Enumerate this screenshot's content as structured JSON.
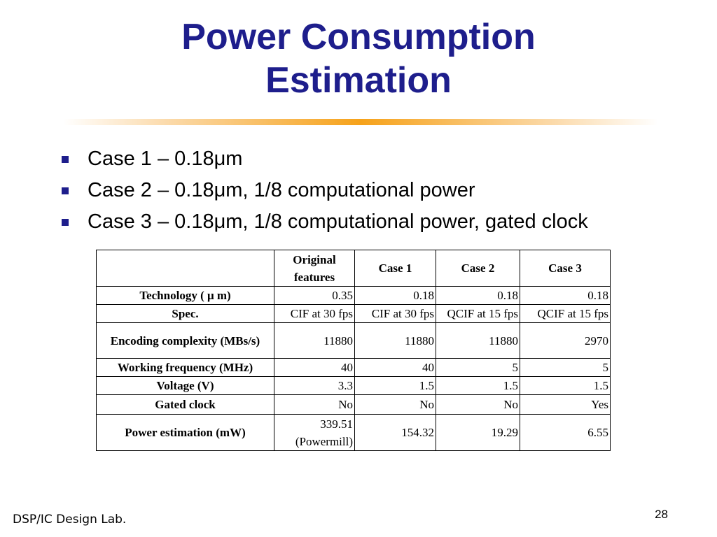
{
  "slide": {
    "title_line1": "Power Consumption",
    "title_line2": "Estimation",
    "bullets": [
      "Case 1 – 0.18μm",
      "Case 2 – 0.18μm, 1/8 computational power",
      "Case 3 – 0.18μm, 1/8 computational power, gated clock"
    ],
    "page_number": "28",
    "footer": "DSP/IC Design Lab."
  },
  "table": {
    "columns": [
      "",
      "Original features",
      "Case 1",
      "Case 2",
      "Case 3"
    ],
    "col0_line1": "Original",
    "col0_line2": "features",
    "rows": [
      {
        "label": "Technology ( μ m)",
        "values": [
          "0.35",
          "0.18",
          "0.18",
          "0.18"
        ]
      },
      {
        "label": "Spec.",
        "values": [
          "CIF at 30 fps",
          "CIF at 30 fps",
          "QCIF at 15 fps",
          "QCIF at 15 fps"
        ]
      },
      {
        "label": "Encoding complexity (MBs/s)",
        "values": [
          "11880",
          "11880",
          "11880",
          "2970"
        ]
      },
      {
        "label": "Working frequency (MHz)",
        "values": [
          "40",
          "40",
          "5",
          "5"
        ]
      },
      {
        "label": "Voltage (V)",
        "values": [
          "3.3",
          "1.5",
          "1.5",
          "1.5"
        ]
      },
      {
        "label": "Gated clock",
        "values": [
          "No",
          "No",
          "No",
          "Yes"
        ]
      },
      {
        "label": "Power estimation (mW)",
        "values": [
          "339.51",
          "154.32",
          "19.29",
          "6.55"
        ],
        "note": "(Powermill)"
      }
    ]
  },
  "colors": {
    "title": "#1e1e8c",
    "bullet": "#1e1e8c",
    "rule_accent": "#f6a21a"
  }
}
